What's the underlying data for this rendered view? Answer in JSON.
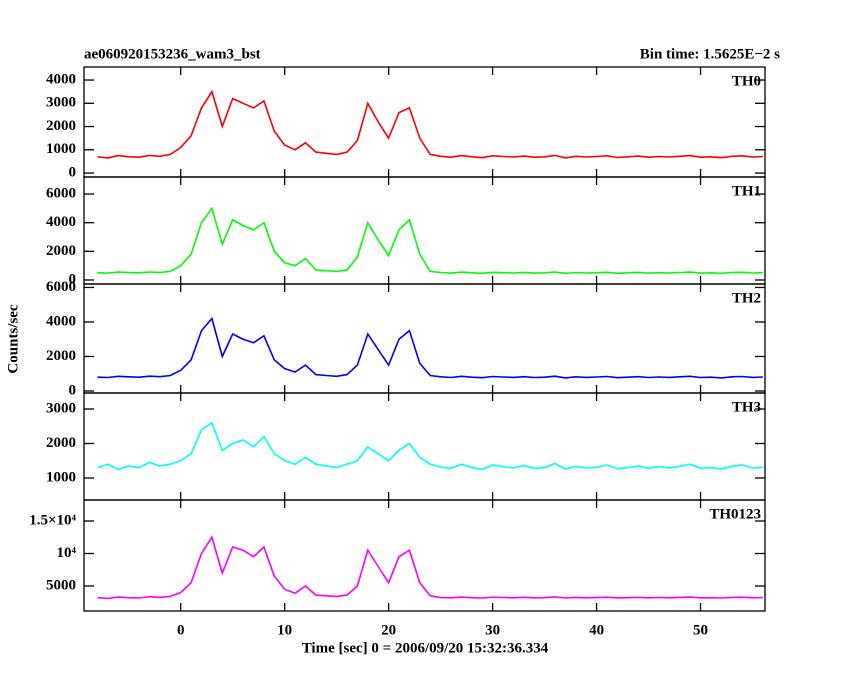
{
  "title": "ae060920153236_wam3_bst",
  "subtitle": "Bin time: 1.5625E−2 s",
  "ylabel": "Counts/sec",
  "xlabel": "Time [sec] 0 = 2006/09/20 15:32:36.334",
  "chart_data": [
    {
      "type": "line",
      "label": "TH0",
      "color": "#ff0000",
      "xlim": [
        -9.3,
        56.2
      ],
      "xticks": [
        0,
        10,
        20,
        30,
        40,
        50
      ],
      "ylim": [
        -170,
        4560
      ],
      "yticks": [
        0,
        1000,
        2000,
        3000,
        4000
      ],
      "x": [
        -8,
        -7,
        -6,
        -5,
        -4,
        -3,
        -2,
        -1,
        0,
        1,
        2,
        3,
        4,
        5,
        6,
        7,
        8,
        9,
        10,
        11,
        12,
        13,
        14,
        15,
        16,
        17,
        18,
        19,
        20,
        21,
        22,
        23,
        24,
        25,
        26,
        27,
        28,
        29,
        30,
        31,
        32,
        33,
        34,
        35,
        36,
        37,
        38,
        39,
        40,
        41,
        42,
        43,
        44,
        45,
        46,
        47,
        48,
        49,
        50,
        51,
        52,
        53,
        54,
        55,
        56
      ],
      "values": [
        700,
        650,
        750,
        700,
        680,
        760,
        720,
        800,
        1100,
        1600,
        2800,
        3500,
        2000,
        3200,
        3000,
        2800,
        3100,
        1800,
        1200,
        1000,
        1300,
        900,
        850,
        800,
        900,
        1400,
        3000,
        2200,
        1500,
        2600,
        2800,
        1500,
        800,
        720,
        680,
        750,
        700,
        660,
        740,
        710,
        690,
        730,
        680,
        700,
        760,
        650,
        720,
        690,
        710,
        740,
        670,
        700,
        730,
        680,
        710,
        690,
        720,
        750,
        680,
        700,
        660,
        720,
        740,
        690,
        710
      ]
    },
    {
      "type": "line",
      "label": "TH1",
      "color": "#00ff00",
      "xlim": [
        -9.3,
        56.2
      ],
      "xticks": [
        0,
        10,
        20,
        30,
        40,
        50
      ],
      "ylim": [
        -280,
        7190
      ],
      "yticks": [
        0,
        2000,
        4000,
        6000
      ],
      "x": [
        -8,
        -7,
        -6,
        -5,
        -4,
        -3,
        -2,
        -1,
        0,
        1,
        2,
        3,
        4,
        5,
        6,
        7,
        8,
        9,
        10,
        11,
        12,
        13,
        14,
        15,
        16,
        17,
        18,
        19,
        20,
        21,
        22,
        23,
        24,
        25,
        26,
        27,
        28,
        29,
        30,
        31,
        32,
        33,
        34,
        35,
        36,
        37,
        38,
        39,
        40,
        41,
        42,
        43,
        44,
        45,
        46,
        47,
        48,
        49,
        50,
        51,
        52,
        53,
        54,
        55,
        56
      ],
      "values": [
        500,
        480,
        550,
        520,
        500,
        560,
        530,
        600,
        1000,
        1800,
        4000,
        5000,
        2500,
        4200,
        3800,
        3500,
        4000,
        2000,
        1200,
        1000,
        1500,
        700,
        650,
        600,
        700,
        1600,
        4000,
        2800,
        1700,
        3500,
        4200,
        1800,
        600,
        520,
        480,
        550,
        500,
        470,
        540,
        510,
        490,
        530,
        480,
        500,
        560,
        460,
        520,
        490,
        510,
        540,
        470,
        500,
        530,
        480,
        510,
        490,
        520,
        550,
        480,
        500,
        460,
        520,
        540,
        490,
        510
      ]
    },
    {
      "type": "line",
      "label": "TH2",
      "color": "#0000ff",
      "xlim": [
        -9.3,
        56.2
      ],
      "xticks": [
        0,
        10,
        20,
        30,
        40,
        50
      ],
      "ylim": [
        -116,
        6200
      ],
      "yticks": [
        0,
        2000,
        4000,
        6000
      ],
      "x": [
        -8,
        -7,
        -6,
        -5,
        -4,
        -3,
        -2,
        -1,
        0,
        1,
        2,
        3,
        4,
        5,
        6,
        7,
        8,
        9,
        10,
        11,
        12,
        13,
        14,
        15,
        16,
        17,
        18,
        19,
        20,
        21,
        22,
        23,
        24,
        25,
        26,
        27,
        28,
        29,
        30,
        31,
        32,
        33,
        34,
        35,
        36,
        37,
        38,
        39,
        40,
        41,
        42,
        43,
        44,
        45,
        46,
        47,
        48,
        49,
        50,
        51,
        52,
        53,
        54,
        55,
        56
      ],
      "values": [
        800,
        780,
        850,
        820,
        800,
        860,
        830,
        900,
        1200,
        1800,
        3500,
        4200,
        2000,
        3300,
        3000,
        2800,
        3200,
        1800,
        1300,
        1100,
        1500,
        950,
        900,
        850,
        950,
        1500,
        3300,
        2400,
        1500,
        3000,
        3500,
        1600,
        900,
        820,
        780,
        850,
        800,
        770,
        840,
        810,
        790,
        830,
        780,
        800,
        860,
        760,
        820,
        790,
        810,
        840,
        770,
        800,
        830,
        780,
        810,
        790,
        820,
        850,
        780,
        800,
        760,
        820,
        840,
        790,
        810
      ]
    },
    {
      "type": "line",
      "label": "TH3",
      "color": "#00ffff",
      "xlim": [
        -9.3,
        56.2
      ],
      "xticks": [
        0,
        10,
        20,
        30,
        40,
        50
      ],
      "ylim": [
        362,
        3464
      ],
      "yticks": [
        1000,
        2000,
        3000
      ],
      "x": [
        -8,
        -7,
        -6,
        -5,
        -4,
        -3,
        -2,
        -1,
        0,
        1,
        2,
        3,
        4,
        5,
        6,
        7,
        8,
        9,
        10,
        11,
        12,
        13,
        14,
        15,
        16,
        17,
        18,
        19,
        20,
        21,
        22,
        23,
        24,
        25,
        26,
        27,
        28,
        29,
        30,
        31,
        32,
        33,
        34,
        35,
        36,
        37,
        38,
        39,
        40,
        41,
        42,
        43,
        44,
        45,
        46,
        47,
        48,
        49,
        50,
        51,
        52,
        53,
        54,
        55,
        56
      ],
      "values": [
        1300,
        1400,
        1250,
        1350,
        1300,
        1450,
        1350,
        1400,
        1500,
        1700,
        2400,
        2600,
        1800,
        2000,
        2100,
        1900,
        2200,
        1700,
        1500,
        1400,
        1600,
        1400,
        1350,
        1300,
        1400,
        1500,
        1900,
        1700,
        1500,
        1800,
        2000,
        1600,
        1400,
        1320,
        1280,
        1400,
        1300,
        1250,
        1380,
        1330,
        1290,
        1360,
        1280,
        1300,
        1420,
        1260,
        1340,
        1290,
        1310,
        1380,
        1270,
        1300,
        1350,
        1280,
        1330,
        1290,
        1340,
        1400,
        1280,
        1300,
        1260,
        1340,
        1380,
        1290,
        1310
      ]
    },
    {
      "type": "line",
      "label": "TH0123",
      "color": "#ff00ff",
      "xlim": [
        -9.3,
        56.2
      ],
      "xticks": [
        0,
        10,
        20,
        30,
        40,
        50
      ],
      "ylim": [
        1154,
        18230
      ],
      "yticks": [
        5000,
        {
          "value": 10000,
          "label": "10⁴"
        },
        {
          "value": 15000,
          "label": "1.5×10⁴"
        }
      ],
      "x": [
        -8,
        -7,
        -6,
        -5,
        -4,
        -3,
        -2,
        -1,
        0,
        1,
        2,
        3,
        4,
        5,
        6,
        7,
        8,
        9,
        10,
        11,
        12,
        13,
        14,
        15,
        16,
        17,
        18,
        19,
        20,
        21,
        22,
        23,
        24,
        25,
        26,
        27,
        28,
        29,
        30,
        31,
        32,
        33,
        34,
        35,
        36,
        37,
        38,
        39,
        40,
        41,
        42,
        43,
        44,
        45,
        46,
        47,
        48,
        49,
        50,
        51,
        52,
        53,
        54,
        55,
        56
      ],
      "values": [
        3200,
        3100,
        3300,
        3200,
        3150,
        3350,
        3250,
        3400,
        4000,
        5500,
        10000,
        12500,
        7000,
        11000,
        10500,
        9500,
        11000,
        6500,
        4500,
        3900,
        5000,
        3600,
        3500,
        3400,
        3600,
        5000,
        10500,
        8000,
        5500,
        9500,
        10500,
        5500,
        3500,
        3220,
        3180,
        3300,
        3200,
        3150,
        3280,
        3230,
        3190,
        3260,
        3180,
        3200,
        3320,
        3160,
        3240,
        3190,
        3210,
        3280,
        3170,
        3200,
        3250,
        3180,
        3230,
        3190,
        3240,
        3300,
        3180,
        3200,
        3160,
        3240,
        3280,
        3190,
        3210
      ]
    }
  ]
}
